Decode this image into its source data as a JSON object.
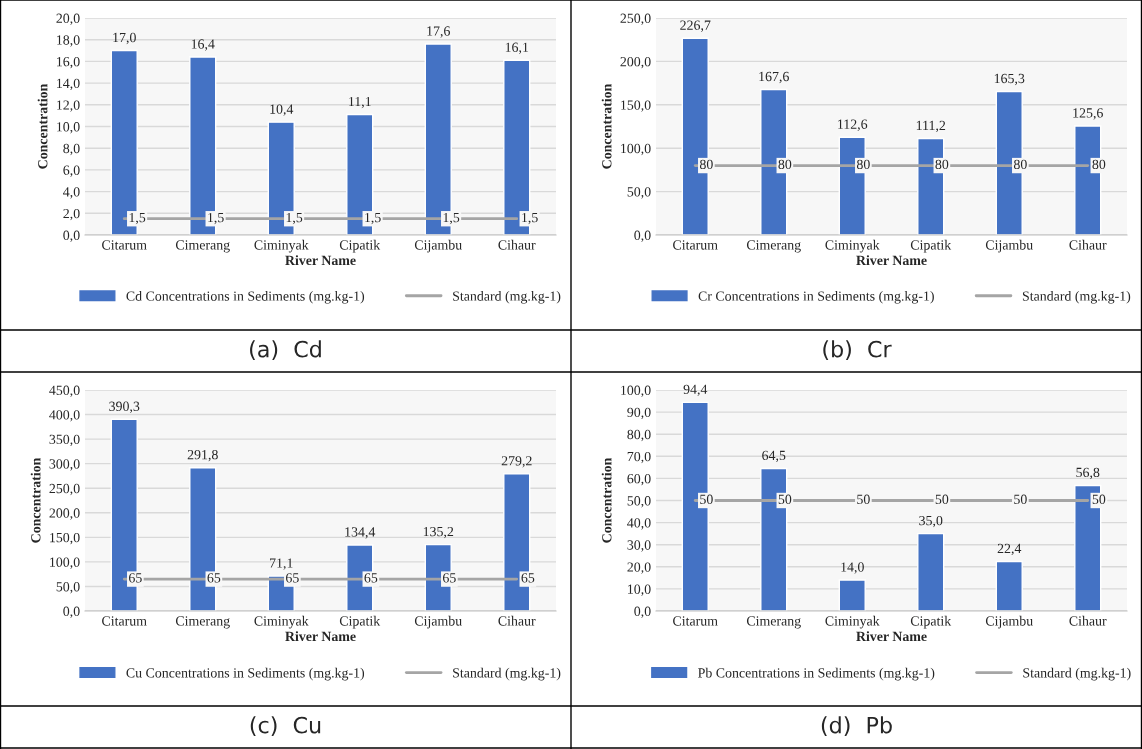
{
  "chart_data": [
    {
      "type": "bar",
      "xlabel": "River Name",
      "ylabel": "Concentration",
      "categories": [
        "Citarum",
        "Cimerang",
        "Ciminyak",
        "Cipatik",
        "Cijambu",
        "Cihaur"
      ],
      "ylim": [
        0,
        20
      ],
      "yticks": [
        {
          "value": 0,
          "label": "0,0"
        },
        {
          "value": 2,
          "label": "2,0"
        },
        {
          "value": 4,
          "label": "4,0"
        },
        {
          "value": 6,
          "label": "6,0"
        },
        {
          "value": 8,
          "label": "8,0"
        },
        {
          "value": 10,
          "label": "10,0"
        },
        {
          "value": 12,
          "label": "12,0"
        },
        {
          "value": 14,
          "label": "14,0"
        },
        {
          "value": 16,
          "label": "16,0"
        },
        {
          "value": 18,
          "label": "18,0"
        },
        {
          "value": 20,
          "label": "20,0"
        }
      ],
      "grid": "y",
      "legend": "bottom",
      "annotations": [
        "(a)  Cd"
      ],
      "series": [
        {
          "type": "bar",
          "name": "Cd Concentrations in Sediments (mg.kg-1)",
          "color": "#4472c4",
          "values": [
            17.0,
            16.4,
            10.4,
            11.1,
            17.6,
            16.1
          ],
          "value_labels": [
            "17,0",
            "16,4",
            "10,4",
            "11,1",
            "17,6",
            "16,1"
          ]
        },
        {
          "type": "line",
          "name": "Standard (mg.kg-1)",
          "color": "#a5a5a5",
          "values": [
            1.5,
            1.5,
            1.5,
            1.5,
            1.5,
            1.5
          ],
          "value_labels": [
            "1,5",
            "1,5",
            "1,5",
            "1,5",
            "1,5",
            "1,5"
          ]
        }
      ]
    },
    {
      "type": "bar",
      "xlabel": "River Name",
      "ylabel": "Concentration",
      "categories": [
        "Citarum",
        "Cimerang",
        "Ciminyak",
        "Cipatik",
        "Cijambu",
        "Cihaur"
      ],
      "ylim": [
        0,
        250
      ],
      "yticks": [
        {
          "value": 0,
          "label": "0,0"
        },
        {
          "value": 50,
          "label": "50,0"
        },
        {
          "value": 100,
          "label": "100,0"
        },
        {
          "value": 150,
          "label": "150,0"
        },
        {
          "value": 200,
          "label": "200,0"
        },
        {
          "value": 250,
          "label": "250,0"
        }
      ],
      "grid": "y",
      "legend": "bottom",
      "annotations": [
        "(b)  Cr"
      ],
      "series": [
        {
          "type": "bar",
          "name": "Cr Concentrations in Sediments (mg.kg-1)",
          "color": "#4472c4",
          "values": [
            226.7,
            167.6,
            112.6,
            111.2,
            165.3,
            125.6
          ],
          "value_labels": [
            "226,7",
            "167,6",
            "112,6",
            "111,2",
            "165,3",
            "125,6"
          ]
        },
        {
          "type": "line",
          "name": "Standard (mg.kg-1)",
          "color": "#a5a5a5",
          "values": [
            80,
            80,
            80,
            80,
            80,
            80
          ],
          "value_labels": [
            "80",
            "80",
            "80",
            "80",
            "80",
            "80"
          ]
        }
      ]
    },
    {
      "type": "bar",
      "xlabel": "River Name",
      "ylabel": "Concentration",
      "categories": [
        "Citarum",
        "Cimerang",
        "Ciminyak",
        "Cipatik",
        "Cijambu",
        "Cihaur"
      ],
      "ylim": [
        0,
        450
      ],
      "yticks": [
        {
          "value": 0,
          "label": "0,0"
        },
        {
          "value": 50,
          "label": "50,0"
        },
        {
          "value": 100,
          "label": "100,0"
        },
        {
          "value": 150,
          "label": "150,0"
        },
        {
          "value": 200,
          "label": "200,0"
        },
        {
          "value": 250,
          "label": "250,0"
        },
        {
          "value": 300,
          "label": "300,0"
        },
        {
          "value": 350,
          "label": "350,0"
        },
        {
          "value": 400,
          "label": "400,0"
        },
        {
          "value": 450,
          "label": "450,0"
        }
      ],
      "grid": "y",
      "legend": "bottom",
      "annotations": [
        "(c)  Cu"
      ],
      "series": [
        {
          "type": "bar",
          "name": "Cu Concentrations in Sediments (mg.kg-1)",
          "color": "#4472c4",
          "values": [
            390.3,
            291.8,
            71.1,
            134.4,
            135.2,
            279.2
          ],
          "value_labels": [
            "390,3",
            "291,8",
            "71,1",
            "134,4",
            "135,2",
            "279,2"
          ]
        },
        {
          "type": "line",
          "name": "Standard (mg.kg-1)",
          "color": "#a5a5a5",
          "values": [
            65,
            65,
            65,
            65,
            65,
            65
          ],
          "value_labels": [
            "65",
            "65",
            "65",
            "65",
            "65",
            "65"
          ]
        }
      ]
    },
    {
      "type": "bar",
      "xlabel": "River Name",
      "ylabel": "Concentration",
      "categories": [
        "Citarum",
        "Cimerang",
        "Ciminyak",
        "Cipatik",
        "Cijambu",
        "Cihaur"
      ],
      "ylim": [
        0,
        100
      ],
      "yticks": [
        {
          "value": 0,
          "label": "0,0"
        },
        {
          "value": 10,
          "label": "10,0"
        },
        {
          "value": 20,
          "label": "20,0"
        },
        {
          "value": 30,
          "label": "30,0"
        },
        {
          "value": 40,
          "label": "40,0"
        },
        {
          "value": 50,
          "label": "50,0"
        },
        {
          "value": 60,
          "label": "60,0"
        },
        {
          "value": 70,
          "label": "70,0"
        },
        {
          "value": 80,
          "label": "80,0"
        },
        {
          "value": 90,
          "label": "90,0"
        },
        {
          "value": 100,
          "label": "100,0"
        }
      ],
      "grid": "y",
      "legend": "bottom",
      "annotations": [
        "(d)  Pb"
      ],
      "series": [
        {
          "type": "bar",
          "name": "Pb Concentrations in Sediments (mg.kg-1)",
          "color": "#4472c4",
          "values": [
            94.4,
            64.5,
            14.0,
            35.0,
            22.4,
            56.8
          ],
          "value_labels": [
            "94,4",
            "64,5",
            "14,0",
            "35,0",
            "22,4",
            "56,8"
          ]
        },
        {
          "type": "line",
          "name": "Standard (mg.kg-1)",
          "color": "#a5a5a5",
          "values": [
            50,
            50,
            50,
            50,
            50,
            50
          ],
          "value_labels": [
            "50",
            "50",
            "50",
            "50",
            "50",
            "50"
          ]
        }
      ]
    }
  ]
}
